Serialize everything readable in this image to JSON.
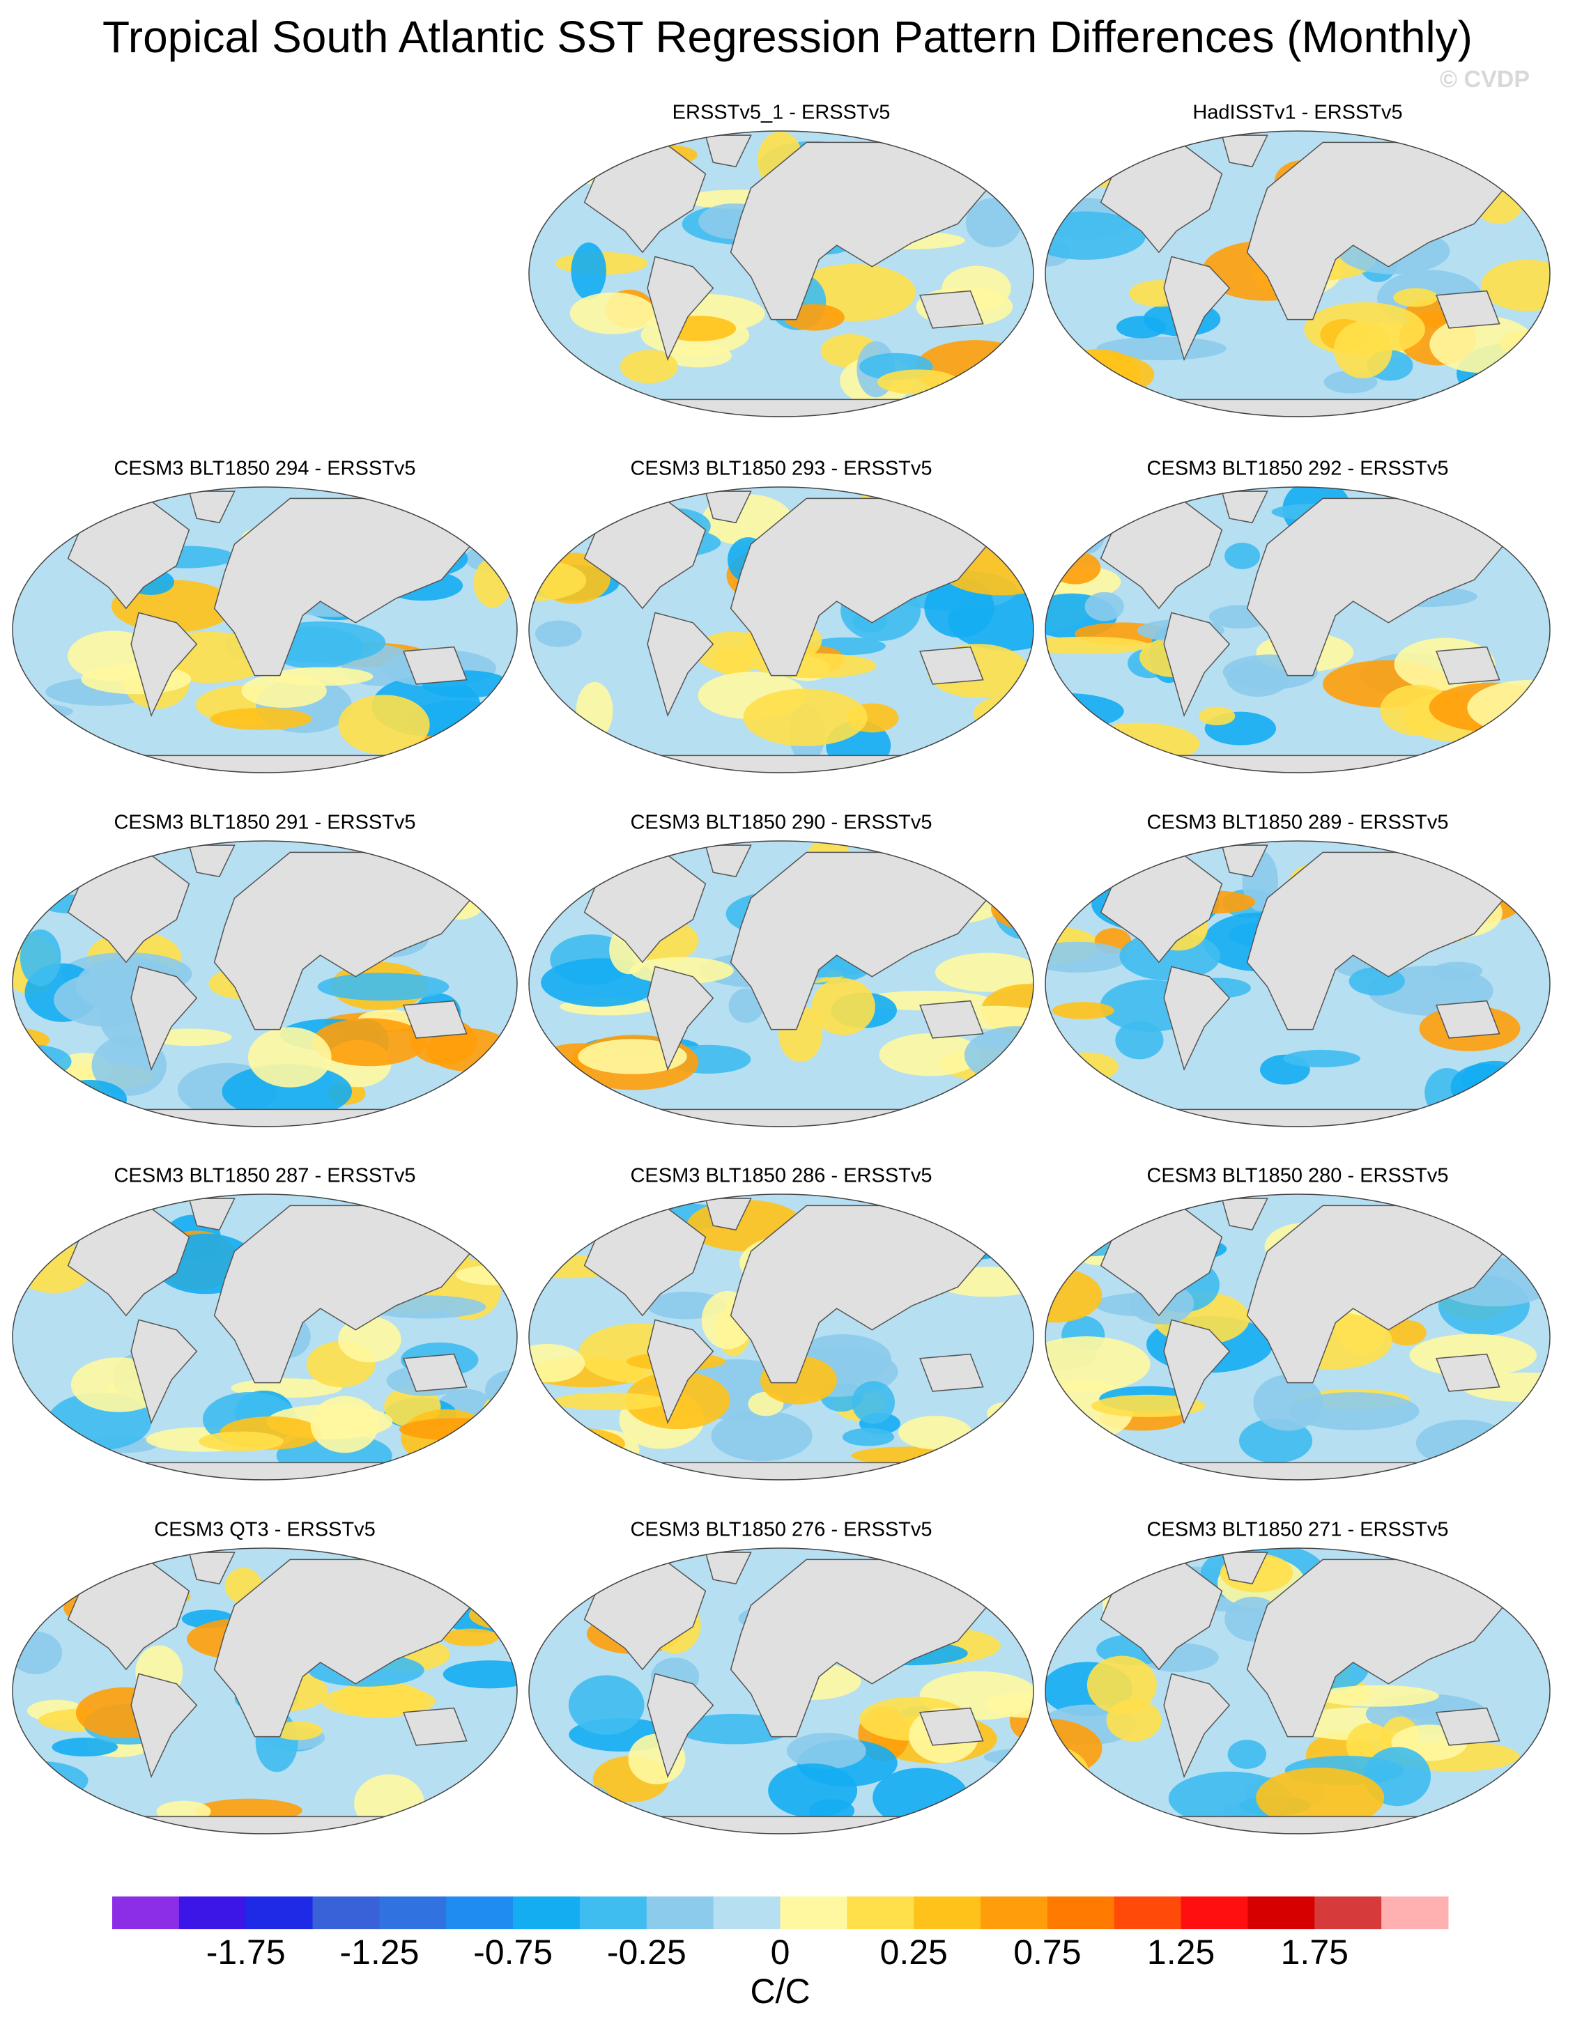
{
  "title": "Tropical South Atlantic SST Regression Pattern Differences (Monthly)",
  "watermark": "© CVDP",
  "panels": [
    {
      "title": "ERSSTv5_1 - ERSSTv5"
    },
    {
      "title": "HadISSTv1 - ERSSTv5"
    },
    {
      "title": "CESM3 BLT1850 294 - ERSSTv5"
    },
    {
      "title": "CESM3 BLT1850 293 - ERSSTv5"
    },
    {
      "title": "CESM3 BLT1850 292 - ERSSTv5"
    },
    {
      "title": "CESM3 BLT1850 291 - ERSSTv5"
    },
    {
      "title": "CESM3 BLT1850 290 - ERSSTv5"
    },
    {
      "title": "CESM3 BLT1850 289 - ERSSTv5"
    },
    {
      "title": "CESM3 BLT1850 287 - ERSSTv5"
    },
    {
      "title": "CESM3 BLT1850 286 - ERSSTv5"
    },
    {
      "title": "CESM3 BLT1850 280 - ERSSTv5"
    },
    {
      "title": "CESM3 QT3 - ERSSTv5"
    },
    {
      "title": "CESM3 BLT1850 276 - ERSSTv5"
    },
    {
      "title": "CESM3 BLT1850 271 - ERSSTv5"
    }
  ],
  "colorbar": {
    "colors": [
      "#8b2ee6",
      "#3b16e6",
      "#1f2ae6",
      "#3a62d8",
      "#2f72e0",
      "#1e8cf0",
      "#14adf2",
      "#3fbdf0",
      "#8ccbeb",
      "#b6dff2",
      "#fff8a0",
      "#ffe04a",
      "#ffc21a",
      "#ff9e0a",
      "#ff7a00",
      "#ff4a0a",
      "#ff0f0f",
      "#d60000",
      "#d63a3a",
      "#ffb0b0"
    ],
    "labels": [
      -1.75,
      -1.25,
      -0.75,
      -0.25,
      0,
      0.25,
      0.75,
      1.25,
      1.75
    ],
    "units": "C/C"
  }
}
